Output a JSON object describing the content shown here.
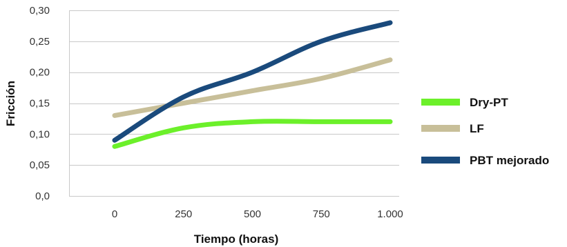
{
  "chart_data": {
    "type": "line",
    "xlabel": "Tiempo (horas)",
    "ylabel": "Fricción",
    "x": [
      0,
      250,
      500,
      750,
      1000
    ],
    "x_tick_labels": [
      "0",
      "250",
      "500",
      "750",
      "1.000"
    ],
    "y_tick_labels": [
      "0,0",
      "0,05",
      "0,10",
      "0,15",
      "0,20",
      "0,25",
      "0,30"
    ],
    "ylim": [
      0,
      0.3
    ],
    "grid": true,
    "legend_position": "right",
    "series": [
      {
        "name": "Dry-PT",
        "color": "#6cf02a",
        "values": [
          0.08,
          0.11,
          0.12,
          0.12,
          0.12
        ]
      },
      {
        "name": "LF",
        "color": "#c8bf99",
        "values": [
          0.13,
          0.15,
          0.17,
          0.19,
          0.22
        ]
      },
      {
        "name": "PBT mejorado",
        "color": "#1a4a7c",
        "values": [
          0.09,
          0.16,
          0.2,
          0.25,
          0.28
        ]
      }
    ]
  }
}
